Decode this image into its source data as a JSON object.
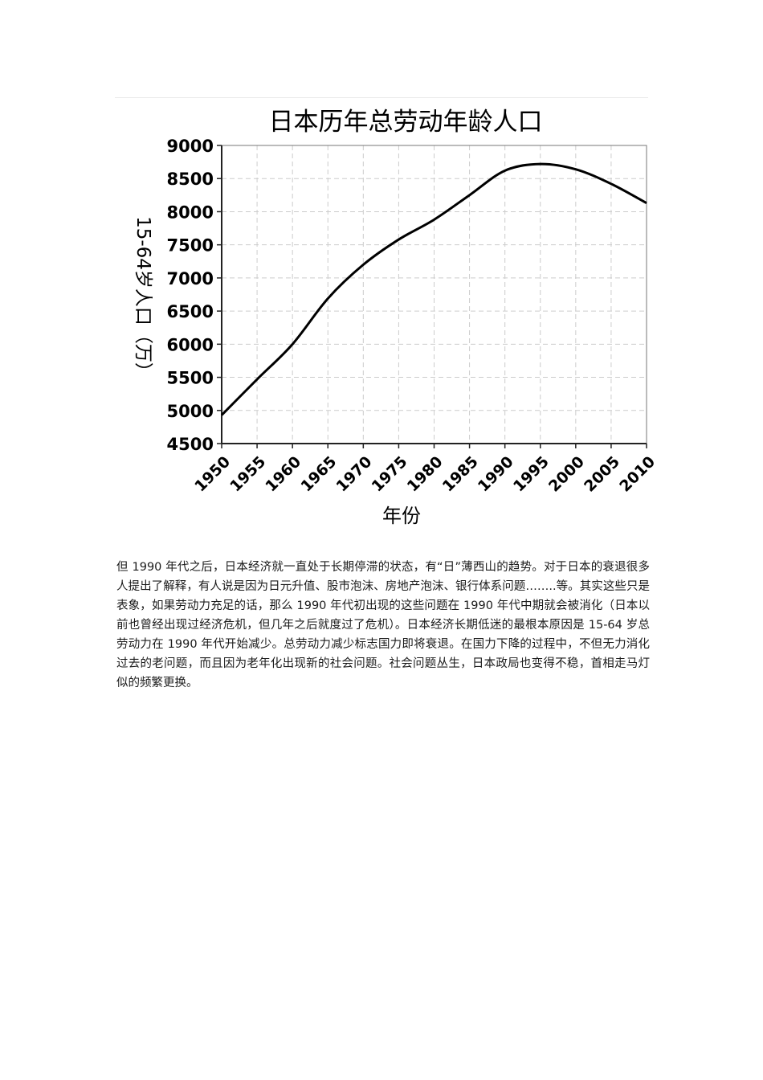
{
  "chart_data": {
    "type": "line",
    "title": "日本历年总劳动年龄人口",
    "xlabel": "年份",
    "ylabel": "15-64岁人口（万）",
    "x": [
      1950,
      1955,
      1960,
      1965,
      1970,
      1975,
      1980,
      1985,
      1990,
      1995,
      2000,
      2005,
      2010
    ],
    "series": [
      {
        "values": [
          4930,
          5470,
          6000,
          6690,
          7200,
          7580,
          7880,
          8250,
          8620,
          8720,
          8640,
          8420,
          8130
        ]
      }
    ],
    "xlim": [
      1950,
      2010
    ],
    "ylim": [
      4500,
      9000
    ],
    "xticks": [
      "1950",
      "1955",
      "1960",
      "1965",
      "1970",
      "1975",
      "1980",
      "1985",
      "1990",
      "1995",
      "2000",
      "2005",
      "2010"
    ],
    "yticks": [
      "4500",
      "5000",
      "5500",
      "6000",
      "6500",
      "7000",
      "7500",
      "8000",
      "8500",
      "9000"
    ],
    "grid": true,
    "line_color": "#000000",
    "grid_color": "#cccccc"
  },
  "article": {
    "paragraph": "但 1990 年代之后，日本经济就一直处于长期停滞的状态，有“日”薄西山的趋势。对于日本的衰退很多人提出了解释，有人说是因为日元升值、股市泡沫、房地产泡沫、银行体系问题……..等。其实这些只是表象，如果劳动力充足的话，那么 1990 年代初出现的这些问题在 1990 年代中期就会被消化（日本以前也曾经出现过经济危机，但几年之后就度过了危机）。日本经济长期低迷的最根本原因是 15-64 岁总劳动力在 1990 年代开始减少。总劳动力减少标志国力即将衰退。在国力下降的过程中，不但无力消化过去的老问题，而且因为老年化出现新的社会问题。社会问题丛生，日本政局也变得不稳，首相走马灯似的频繁更换。"
  }
}
